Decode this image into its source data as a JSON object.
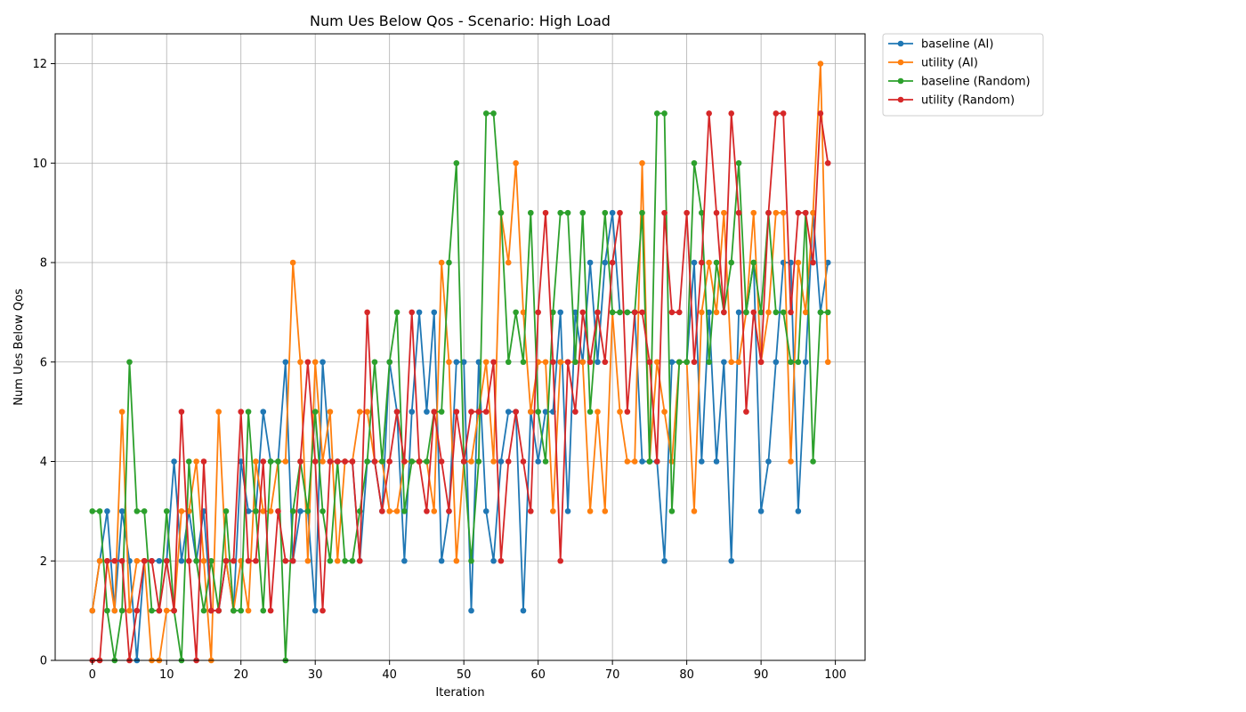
{
  "chart_data": {
    "type": "line",
    "title": "Num Ues Below Qos - Scenario: High Load",
    "xlabel": "Iteration",
    "ylabel": "Num Ues Below Qos",
    "xlim": [
      -5,
      104
    ],
    "ylim": [
      0,
      12.6
    ],
    "xticks": [
      0,
      10,
      20,
      30,
      40,
      50,
      60,
      70,
      80,
      90,
      100
    ],
    "yticks": [
      0,
      2,
      4,
      6,
      8,
      10,
      12
    ],
    "grid": true,
    "legend_position": "outside-top-right",
    "series": [
      {
        "name": "baseline (AI)",
        "color": "#1f77b4",
        "values": [
          1,
          2,
          3,
          1,
          3,
          2,
          0,
          2,
          2,
          2,
          2,
          4,
          2,
          3,
          2,
          3,
          1,
          1,
          2,
          1,
          4,
          3,
          3,
          5,
          4,
          4,
          6,
          2,
          3,
          3,
          1,
          6,
          4,
          4,
          4,
          4,
          2,
          4,
          4,
          3,
          6,
          5,
          2,
          5,
          7,
          5,
          7,
          2,
          3,
          6,
          6,
          1,
          6,
          3,
          2,
          4,
          5,
          5,
          1,
          5,
          4,
          5,
          5,
          7,
          3,
          7,
          6,
          8,
          6,
          8,
          9,
          7,
          7,
          7,
          4,
          4,
          4,
          2,
          6,
          6,
          6,
          8,
          4,
          7,
          4,
          6,
          2,
          7,
          7,
          8,
          3,
          4,
          6,
          8,
          8,
          3,
          6,
          9,
          7,
          8
        ]
      },
      {
        "name": "utility (AI)",
        "color": "#ff7f0e",
        "values": [
          1,
          2,
          2,
          1,
          5,
          1,
          2,
          2,
          0,
          0,
          1,
          1,
          3,
          3,
          4,
          2,
          0,
          5,
          2,
          1,
          2,
          1,
          4,
          3,
          3,
          4,
          4,
          8,
          6,
          2,
          6,
          4,
          5,
          2,
          4,
          4,
          5,
          5,
          4,
          4,
          3,
          3,
          4,
          4,
          4,
          4,
          3,
          8,
          6,
          2,
          4,
          4,
          5,
          6,
          4,
          9,
          8,
          10,
          7,
          5,
          6,
          6,
          3,
          6,
          6,
          6,
          6,
          3,
          5,
          3,
          7,
          5,
          4,
          4,
          10,
          4,
          6,
          5,
          4,
          6,
          6,
          3,
          7,
          8,
          7,
          9,
          6,
          6,
          7,
          9,
          6,
          7,
          9,
          9,
          4,
          8,
          7,
          9,
          12,
          6
        ]
      },
      {
        "name": "baseline (Random)",
        "color": "#2ca02c",
        "values": [
          3,
          3,
          1,
          0,
          1,
          6,
          3,
          3,
          1,
          1,
          3,
          1,
          0,
          4,
          2,
          1,
          2,
          1,
          3,
          1,
          1,
          5,
          3,
          1,
          4,
          4,
          0,
          3,
          4,
          3,
          5,
          3,
          2,
          4,
          2,
          2,
          3,
          4,
          6,
          4,
          6,
          7,
          3,
          4,
          4,
          4,
          5,
          5,
          8,
          10,
          4,
          2,
          4,
          11,
          11,
          9,
          6,
          7,
          6,
          9,
          5,
          4,
          7,
          9,
          9,
          6,
          9,
          5,
          7,
          9,
          7,
          7,
          7,
          7,
          9,
          4,
          11,
          11,
          3,
          6,
          6,
          10,
          9,
          6,
          8,
          7,
          8,
          10,
          7,
          8,
          7,
          9,
          7,
          7,
          6,
          6,
          9,
          4,
          7,
          7
        ]
      },
      {
        "name": "utility (Random)",
        "color": "#d62728",
        "values": [
          0,
          0,
          2,
          2,
          2,
          0,
          1,
          2,
          2,
          1,
          2,
          1,
          5,
          2,
          0,
          4,
          1,
          1,
          2,
          2,
          5,
          2,
          2,
          4,
          1,
          3,
          2,
          2,
          4,
          6,
          4,
          1,
          4,
          4,
          4,
          4,
          2,
          7,
          4,
          3,
          4,
          5,
          4,
          7,
          4,
          3,
          5,
          4,
          3,
          5,
          4,
          5,
          5,
          5,
          6,
          2,
          4,
          5,
          4,
          3,
          7,
          9,
          6,
          2,
          6,
          5,
          7,
          6,
          7,
          6,
          8,
          9,
          5,
          7,
          7,
          6,
          4,
          9,
          7,
          7,
          9,
          6,
          8,
          11,
          9,
          7,
          11,
          9,
          5,
          7,
          6,
          9,
          11,
          11,
          7,
          9,
          9,
          8,
          11,
          10
        ]
      }
    ]
  }
}
